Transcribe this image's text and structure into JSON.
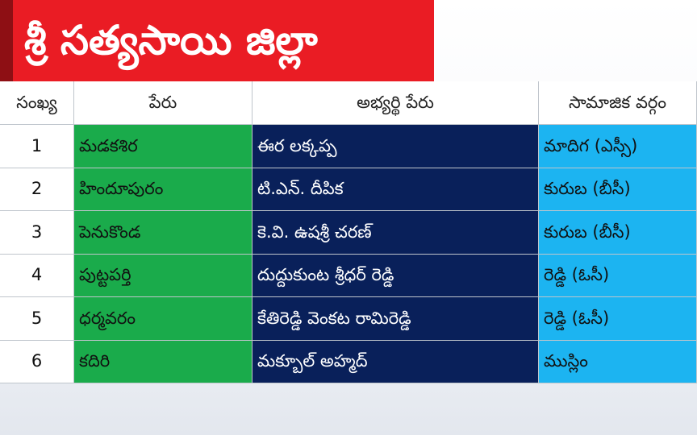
{
  "title": "శ్రీ సత్యసాయి జిల్లా",
  "columns": {
    "number": "సంఖ్య",
    "constituency": "పేరు",
    "candidate": "అభ్యర్థి పేరు",
    "community": "సామాజిక వర్గం"
  },
  "rows": [
    {
      "number": "1",
      "constituency": "మడకశిర",
      "candidate": "ఈర లక్కప్ప",
      "community": "మాదిగ (ఎస్సీ)"
    },
    {
      "number": "2",
      "constituency": "హిందూపురం",
      "candidate": "టి.ఎన్. దీపిక",
      "community": "కురుబ (బీసీ)"
    },
    {
      "number": "3",
      "constituency": "పెనుకొండ",
      "candidate": "కె.వి. ఉషశ్రీ చరణ్",
      "community": "కురుబ (బీసీ)"
    },
    {
      "number": "4",
      "constituency": "పుట్టపర్తి",
      "candidate": "దుద్దుకుంట శ్రీధర్ రెడ్డి",
      "community": "రెడ్డి (ఓసీ)"
    },
    {
      "number": "5",
      "constituency": "ధర్మవరం",
      "candidate": "కేతిరెడ్డి వెంకట రామిరెడ్డి",
      "community": "రెడ్డి (ఓసీ)"
    },
    {
      "number": "6",
      "constituency": "కదిరి",
      "candidate": "మక్బూల్ అహ్మద్",
      "community": "ముస్లిం"
    }
  ],
  "colors": {
    "title_bg": "#ea1c24",
    "constituency_bg": "#1aab4b",
    "candidate_bg": "#09205a",
    "community_bg": "#1cb4f1"
  }
}
